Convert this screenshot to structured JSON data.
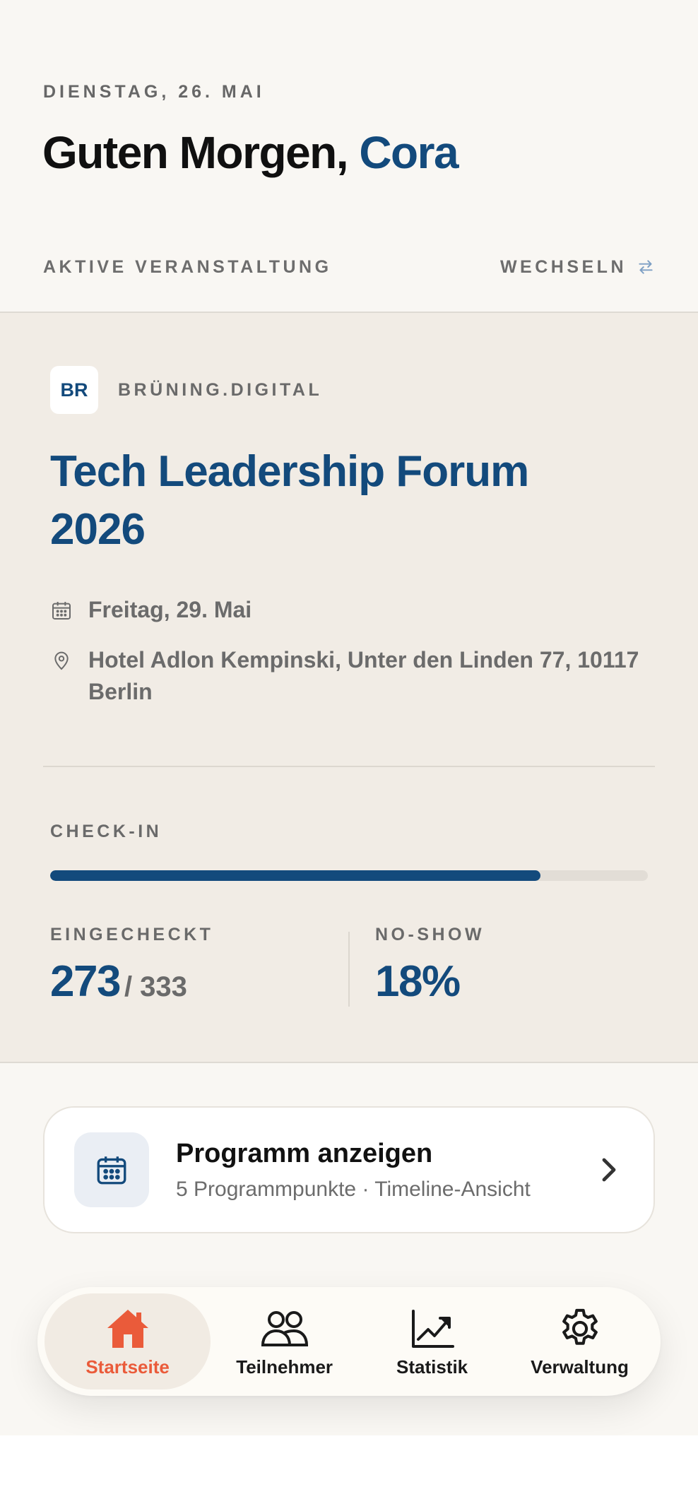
{
  "header": {
    "date": "DIENSTAG, 26. MAI",
    "greeting_prefix": "Guten Morgen,",
    "user_name": "Cora"
  },
  "active_event_section": {
    "label": "AKTIVE VERANSTALTUNG",
    "switch_label": "WECHSELN"
  },
  "event": {
    "org_initials": "BR",
    "org_name": "BRÜNING.DIGITAL",
    "title": "Tech Leadership Forum 2026",
    "date": "Freitag, 29. Mai",
    "location": "Hotel Adlon Kempinski, Unter den Linden 77, 10117 Berlin"
  },
  "checkin": {
    "label": "CHECK-IN",
    "progress_fraction": 0.82,
    "checked_in_label": "EINGECHECKT",
    "checked_in_value": "273",
    "checked_in_total": "/ 333",
    "noshow_label": "NO-SHOW",
    "noshow_value": "18%"
  },
  "program_card": {
    "title": "Programm anzeigen",
    "subtitle": "5 Programmpunkte · Timeline-Ansicht"
  },
  "nav": {
    "items": [
      {
        "label": "Startseite",
        "icon": "home-icon",
        "active": true
      },
      {
        "label": "Teilnehmer",
        "icon": "users-icon",
        "active": false
      },
      {
        "label": "Statistik",
        "icon": "chart-icon",
        "active": false
      },
      {
        "label": "Verwaltung",
        "icon": "gear-icon",
        "active": false
      }
    ]
  },
  "colors": {
    "accent_blue": "#134a7c",
    "active_orange": "#ea5b3a",
    "background": "#f9f7f3",
    "panel": "#f1ece5"
  }
}
